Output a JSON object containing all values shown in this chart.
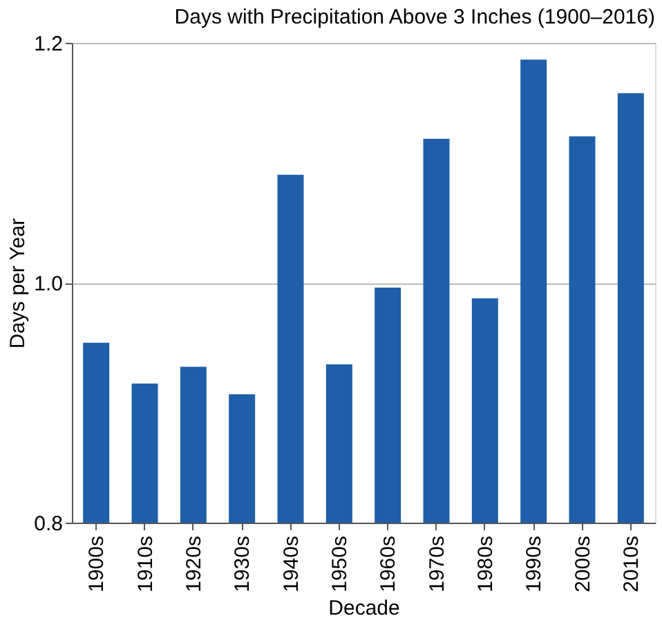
{
  "chart_data": {
    "type": "bar",
    "title": "Days with Precipitation Above 3 Inches (1900–2016)",
    "xlabel": "Decade",
    "ylabel": "Days per Year",
    "categories": [
      "1900s",
      "1910s",
      "1920s",
      "1930s",
      "1940s",
      "1950s",
      "1960s",
      "1970s",
      "1980s",
      "1990s",
      "2000s",
      "2010s"
    ],
    "values": [
      0.95,
      0.916,
      0.93,
      0.907,
      1.09,
      0.932,
      0.996,
      1.12,
      0.987,
      1.186,
      1.122,
      1.158
    ],
    "color": "#1f5fa9",
    "ylim": [
      0.8,
      1.2
    ],
    "yticks": [
      0.8,
      {
        "value": 1,
        "label": "1.0"
      },
      1.2
    ],
    "grid": "y"
  }
}
